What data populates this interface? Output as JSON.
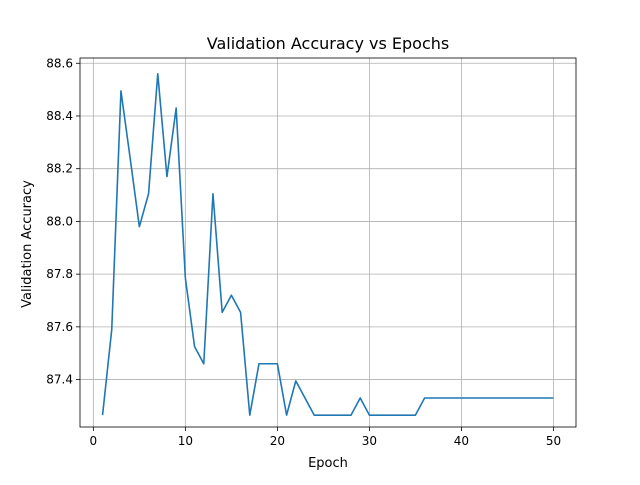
{
  "chart_data": {
    "type": "line",
    "title": "Validation Accuracy vs Epochs",
    "xlabel": "Epoch",
    "ylabel": "Validation Accuracy",
    "xlim": [
      -1.45,
      52.45
    ],
    "ylim": [
      87.22,
      88.62
    ],
    "xticks": [
      0,
      10,
      20,
      30,
      40,
      50
    ],
    "yticks": [
      87.4,
      87.6,
      87.8,
      88.0,
      88.2,
      88.4,
      88.6
    ],
    "xtick_labels": [
      "0",
      "10",
      "20",
      "30",
      "40",
      "50"
    ],
    "ytick_labels": [
      "87.4",
      "87.6",
      "87.8",
      "88.0",
      "88.2",
      "88.4",
      "88.6"
    ],
    "grid": true,
    "line_color": "#1f77b4",
    "series": [
      {
        "x": [
          1,
          2,
          3,
          4,
          5,
          6,
          7,
          8,
          9,
          10,
          11,
          12,
          13,
          14,
          15,
          16,
          17,
          18,
          19,
          20,
          21,
          22,
          23,
          24,
          25,
          26,
          27,
          28,
          29,
          30,
          31,
          32,
          33,
          34,
          35,
          36,
          37,
          38,
          39,
          40,
          41,
          42,
          43,
          44,
          45,
          46,
          47,
          48,
          49,
          50
        ],
        "y": [
          87.265,
          87.59,
          88.495,
          88.24,
          87.98,
          88.105,
          88.56,
          88.17,
          88.43,
          87.785,
          87.525,
          87.46,
          88.105,
          87.655,
          87.72,
          87.655,
          87.265,
          87.46,
          87.46,
          87.46,
          87.265,
          87.395,
          87.33,
          87.265,
          87.265,
          87.265,
          87.265,
          87.265,
          87.33,
          87.265,
          87.265,
          87.265,
          87.265,
          87.265,
          87.265,
          87.33,
          87.33,
          87.33,
          87.33,
          87.33,
          87.33,
          87.33,
          87.33,
          87.33,
          87.33,
          87.33,
          87.33,
          87.33,
          87.33,
          87.33
        ]
      }
    ]
  }
}
